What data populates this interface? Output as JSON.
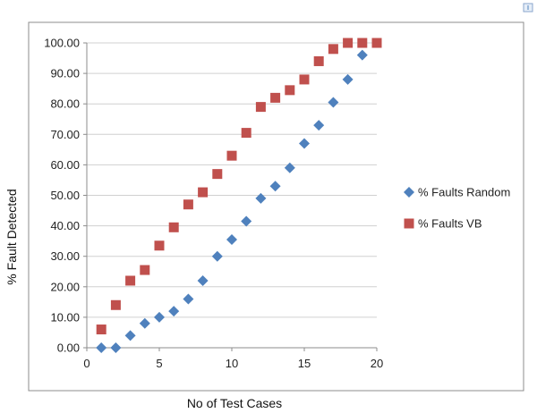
{
  "chart_data": {
    "type": "scatter",
    "xlabel": "No of Test Cases",
    "ylabel": "% Fault Detected",
    "xlim": [
      0,
      20
    ],
    "ylim": [
      0,
      100
    ],
    "x_ticks": [
      "0",
      "5",
      "10",
      "15",
      "20"
    ],
    "y_ticks": [
      "0.00",
      "10.00",
      "20.00",
      "30.00",
      "40.00",
      "50.00",
      "60.00",
      "70.00",
      "80.00",
      "90.00",
      "100.00"
    ],
    "grid": "horizontal",
    "legend_position": "right",
    "series": [
      {
        "name": "% Faults Random",
        "color": "#4F81BD",
        "marker": "diamond",
        "x": [
          1,
          2,
          3,
          4,
          5,
          6,
          7,
          8,
          9,
          10,
          11,
          12,
          13,
          14,
          15,
          16,
          17,
          18,
          19
        ],
        "y": [
          0,
          0,
          4,
          8,
          10,
          12,
          16,
          22,
          30,
          35.5,
          41.5,
          49,
          53,
          59,
          67,
          73,
          80.5,
          88,
          96
        ]
      },
      {
        "name": "% Faults VB",
        "color": "#C0504D",
        "marker": "square",
        "x": [
          1,
          2,
          3,
          4,
          5,
          6,
          7,
          8,
          9,
          10,
          11,
          12,
          13,
          14,
          15,
          16,
          17,
          18,
          19,
          20
        ],
        "y": [
          6,
          14,
          22,
          25.5,
          33.5,
          39.5,
          47,
          51,
          57,
          63,
          70.5,
          79,
          82,
          84.5,
          88,
          94,
          98,
          100,
          100,
          100
        ]
      }
    ]
  }
}
